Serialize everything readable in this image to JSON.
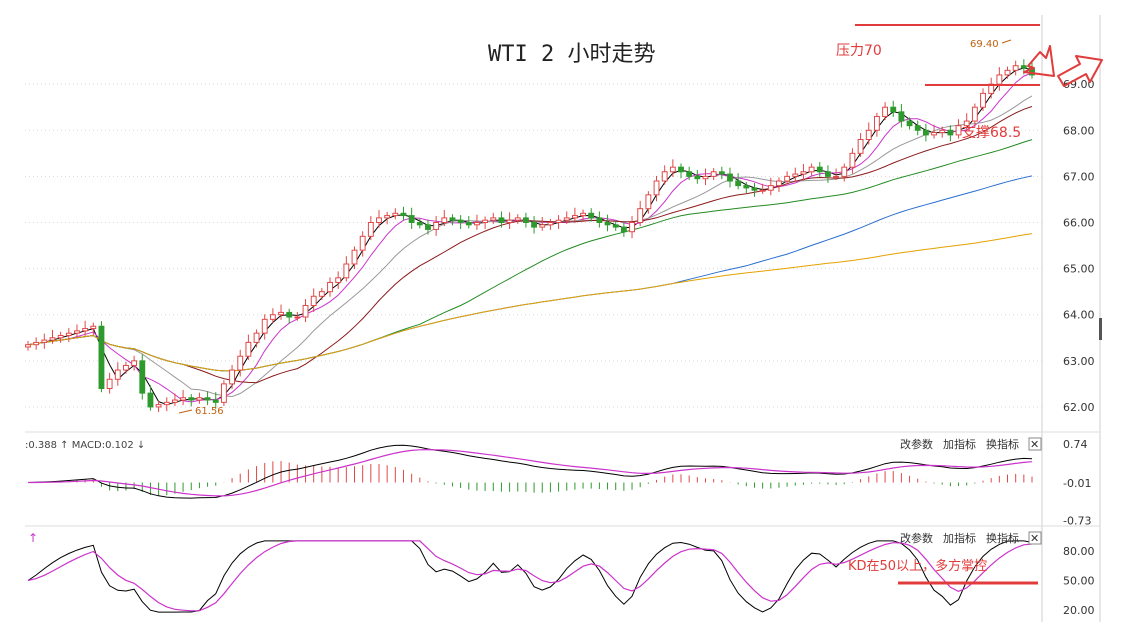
{
  "chart_data": [
    {
      "type": "candlestick",
      "title": "WTI 2 小时走势",
      "ylim": [
        61.5,
        70.5
      ],
      "yticks": [
        "62.00",
        "63.00",
        "64.00",
        "65.00",
        "66.00",
        "67.00",
        "68.00",
        "69.00"
      ],
      "y_tick_values": [
        62,
        63,
        64,
        65,
        66,
        67,
        68,
        69
      ],
      "colors": {
        "up": "#e04848",
        "down": "#2e9a2e",
        "ma5": "#000000",
        "ma10": "#cc33cc",
        "ma20": "#999999",
        "ma30": "#8b1a1a",
        "ma60": "#228b22",
        "ma120": "#2a6fcf",
        "ma250": "#e5a100"
      },
      "closes": [
        63.35,
        63.4,
        63.45,
        63.5,
        63.55,
        63.6,
        63.65,
        63.7,
        63.75,
        62.4,
        62.6,
        62.8,
        62.9,
        63.0,
        62.3,
        62.0,
        62.05,
        62.1,
        62.15,
        62.2,
        62.15,
        62.2,
        62.15,
        62.1,
        62.5,
        62.8,
        63.1,
        63.4,
        63.6,
        63.9,
        64.0,
        64.05,
        63.95,
        63.95,
        64.2,
        64.4,
        64.5,
        64.7,
        64.8,
        65.1,
        65.4,
        65.7,
        66.0,
        66.1,
        66.15,
        66.2,
        66.15,
        66.0,
        65.95,
        65.85,
        66.0,
        66.1,
        66.05,
        66.0,
        65.95,
        66.0,
        66.05,
        66.1,
        66.0,
        66.05,
        66.1,
        66.0,
        65.9,
        65.95,
        66.0,
        66.05,
        66.1,
        66.15,
        66.2,
        66.1,
        66.0,
        65.95,
        65.9,
        65.8,
        66.0,
        66.3,
        66.6,
        66.9,
        67.1,
        67.2,
        67.1,
        67.0,
        66.95,
        67.0,
        67.1,
        67.05,
        66.9,
        66.8,
        66.75,
        66.7,
        66.7,
        66.8,
        66.9,
        67.0,
        67.05,
        67.1,
        67.2,
        67.1,
        67.0,
        67.0,
        67.2,
        67.5,
        67.8,
        68.0,
        68.3,
        68.5,
        68.4,
        68.2,
        68.1,
        68.0,
        67.9,
        67.95,
        68.0,
        67.9,
        68.1,
        68.2,
        68.5,
        68.8,
        69.0,
        69.2,
        69.3,
        69.4,
        69.35,
        69.2
      ],
      "annotations": {
        "high_label": "69.40",
        "low_label": "61.56",
        "resistance": "压力70",
        "support": "支撑68.5"
      },
      "ma_series": [
        "MA5",
        "MA10",
        "MA20",
        "MA30",
        "MA60",
        "MA120",
        "MA250"
      ]
    },
    {
      "type": "bar",
      "title": "MACD",
      "readout": ":0.388 ↑ MACD:0.102 ↓",
      "yticks": [
        "0.74",
        "-0.01",
        "-0.73"
      ],
      "y_tick_values": [
        0.74,
        -0.01,
        -0.73
      ],
      "ylim": [
        -0.8,
        0.82
      ]
    },
    {
      "type": "line",
      "title": "KD",
      "readout": "↑",
      "yticks": [
        "80.00",
        "50.00",
        "20.00"
      ],
      "y_tick_values": [
        80,
        50,
        20
      ],
      "ylim": [
        10,
        95
      ],
      "annotation": "KD在50以上，多方掌控"
    }
  ],
  "controls": {
    "change_params": "改参数",
    "add_indicator": "加指标",
    "swap_indicator": "换指标",
    "close": "✕"
  }
}
